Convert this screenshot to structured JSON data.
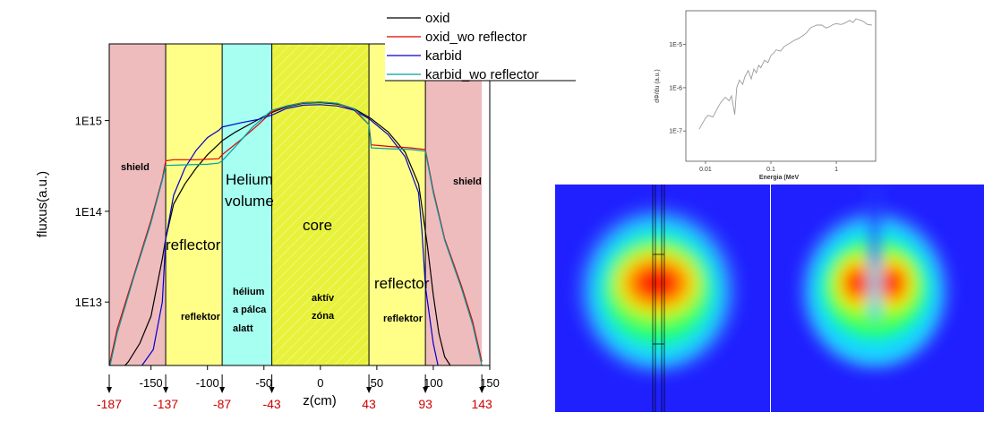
{
  "chart_data": [
    {
      "type": "line",
      "ylabel": "fluxus(a.u.)",
      "xlabel": "z(cm)",
      "xlim": [
        -187,
        150
      ],
      "ylim": [
        2000000000000.0,
        7000000000000000.0
      ],
      "yscale": "log",
      "x_ticks": [
        "-150",
        "-100",
        "-50",
        "0",
        "50",
        "100",
        "150"
      ],
      "y_ticks": [
        "1E13",
        "1E14",
        "1E15"
      ],
      "boundary_labels": [
        "-187",
        "-137",
        "-87",
        "-43",
        "43",
        "93",
        "143"
      ],
      "regions": [
        {
          "from": -187,
          "to": -137,
          "color": "#efbcbe",
          "hatched": false
        },
        {
          "from": -137,
          "to": -87,
          "color": "#ffff88",
          "hatched": false
        },
        {
          "from": -87,
          "to": -43,
          "color": "#a6fff0",
          "hatched": false
        },
        {
          "from": -43,
          "to": 43,
          "color": "#e8f23a",
          "hatched": true
        },
        {
          "from": 43,
          "to": 93,
          "color": "#ffff88",
          "hatched": false
        },
        {
          "from": 93,
          "to": 143,
          "color": "#efbcbe",
          "hatched": false
        }
      ],
      "region_labels": {
        "shield_left": "shield",
        "reflector_left_en": "reflector",
        "reflector_left_hu": "reflektor",
        "helium_volume": [
          "Helium",
          "volume"
        ],
        "helium_hu": [
          "hélium",
          "a pálca",
          "alatt"
        ],
        "core": "core",
        "core_hu": [
          "aktív",
          "zóna"
        ],
        "reflector_right_en": "reflector",
        "reflector_right_hu": "reflektor",
        "shield_right": "shield"
      },
      "series": [
        {
          "name": "oxid",
          "color": "#000000",
          "x": [
            -180,
            -170,
            -160,
            -150,
            -140,
            -137,
            -130,
            -120,
            -110,
            -100,
            -90,
            -87,
            -75,
            -60,
            -45,
            -30,
            -15,
            0,
            15,
            30,
            45,
            60,
            75,
            87,
            90,
            95,
            100,
            105,
            110,
            115
          ],
          "y": [
            1600000000000.0,
            2200000000000.0,
            3500000000000.0,
            7000000000000.0,
            30000000000000.0,
            50000000000000.0,
            120000000000000.0,
            200000000000000.0,
            300000000000000.0,
            420000000000000.0,
            550000000000000.0,
            600000000000000.0,
            750000000000000.0,
            950000000000000.0,
            1200000000000000.0,
            1420000000000000.0,
            1550000000000000.0,
            1580000000000000.0,
            1520000000000000.0,
            1350000000000000.0,
            1050000000000000.0,
            750000000000000.0,
            450000000000000.0,
            200000000000000.0,
            110000000000000.0,
            40000000000000.0,
            12000000000000.0,
            4500000000000.0,
            2500000000000.0,
            2000000000000.0
          ]
        },
        {
          "name": "oxid_wo reflector",
          "color": "#e00000",
          "x": [
            -187,
            -180,
            -165,
            -150,
            -140,
            -137,
            -130,
            -110,
            -90,
            -87,
            -70,
            -55,
            -43,
            -30,
            -15,
            0,
            15,
            30,
            43,
            45,
            60,
            80,
            93,
            100,
            110,
            125,
            135,
            143
          ],
          "y": [
            2000000000000.0,
            5000000000000.0,
            20000000000000.0,
            80000000000000.0,
            230000000000000.0,
            360000000000000.0,
            370000000000000.0,
            370000000000000.0,
            380000000000000.0,
            420000000000000.0,
            620000000000000.0,
            900000000000000.0,
            1250000000000000.0,
            1450000000000000.0,
            1580000000000000.0,
            1600000000000000.0,
            1550000000000000.0,
            1300000000000000.0,
            900000000000000.0,
            540000000000000.0,
            520000000000000.0,
            500000000000000.0,
            480000000000000.0,
            170000000000000.0,
            50000000000000.0,
            15000000000000.0,
            6000000000000.0,
            2200000000000.0
          ]
        },
        {
          "name": "karbid",
          "color": "#0000c8",
          "x": [
            -168,
            -158,
            -148,
            -140,
            -137,
            -130,
            -120,
            -110,
            -100,
            -90,
            -87,
            -70,
            -55,
            -43,
            -30,
            -15,
            0,
            15,
            30,
            43,
            60,
            75,
            87,
            90,
            93,
            100,
            105
          ],
          "y": [
            1600000000000.0,
            2000000000000.0,
            3000000000000.0,
            10000000000000.0,
            50000000000000.0,
            150000000000000.0,
            300000000000000.0,
            470000000000000.0,
            650000000000000.0,
            780000000000000.0,
            850000000000000.0,
            950000000000000.0,
            1030000000000000.0,
            1150000000000000.0,
            1360000000000000.0,
            1480000000000000.0,
            1500000000000000.0,
            1450000000000000.0,
            1300000000000000.0,
            1050000000000000.0,
            700000000000000.0,
            400000000000000.0,
            160000000000000.0,
            60000000000000.0,
            15000000000000.0,
            3500000000000.0,
            1800000000000.0
          ]
        },
        {
          "name": "karbid_wo reflector",
          "color": "#00a0a0",
          "x": [
            -187,
            -180,
            -165,
            -150,
            -140,
            -137,
            -120,
            -100,
            -90,
            -87,
            -75,
            -60,
            -43,
            -30,
            -15,
            0,
            15,
            30,
            43,
            45,
            60,
            80,
            93,
            100,
            110,
            125,
            135,
            143
          ],
          "y": [
            1800000000000.0,
            4500000000000.0,
            19000000000000.0,
            75000000000000.0,
            220000000000000.0,
            320000000000000.0,
            325000000000000.0,
            330000000000000.0,
            340000000000000.0,
            360000000000000.0,
            520000000000000.0,
            850000000000000.0,
            1300000000000000.0,
            1450000000000000.0,
            1570000000000000.0,
            1600000000000000.0,
            1550000000000000.0,
            1350000000000000.0,
            900000000000000.0,
            500000000000000.0,
            490000000000000.0,
            480000000000000.0,
            460000000000000.0,
            160000000000000.0,
            48000000000000.0,
            14000000000000.0,
            5500000000000.0,
            2000000000000.0
          ]
        }
      ]
    },
    {
      "type": "line",
      "xlabel": "Energia (MeV",
      "ylabel": "dΦ/du (a.u.)",
      "xscale": "log",
      "yscale": "log",
      "xlim": [
        0.005,
        4
      ],
      "ylim": [
        2e-08,
        6e-05
      ],
      "x_ticks": [
        "0.01",
        "0.1",
        "1"
      ],
      "y_ticks": [
        "1E-5",
        "1E-6",
        "1E-7"
      ],
      "series": [
        {
          "color": "#9a9a9a",
          "x": [
            0.008,
            0.009,
            0.01,
            0.011,
            0.013,
            0.015,
            0.017,
            0.02,
            0.023,
            0.025,
            0.028,
            0.03,
            0.033,
            0.037,
            0.04,
            0.045,
            0.05,
            0.055,
            0.06,
            0.065,
            0.07,
            0.08,
            0.09,
            0.1,
            0.11,
            0.12,
            0.14,
            0.16,
            0.18,
            0.2,
            0.23,
            0.26,
            0.3,
            0.35,
            0.4,
            0.45,
            0.5,
            0.6,
            0.7,
            0.8,
            0.9,
            1.0,
            1.2,
            1.4,
            1.6,
            1.8,
            2.0,
            2.5,
            3.0,
            3.5
          ],
          "y": [
            1.1e-07,
            1.5e-07,
            2e-07,
            2.3e-07,
            2.1e-07,
            3.2e-07,
            4.5e-07,
            6e-07,
            5e-07,
            6.5e-07,
            2.4e-07,
            1e-06,
            1.5e-06,
            1.2e-06,
            1.8e-06,
            2.5e-06,
            1.6e-06,
            2.7e-06,
            2.2e-06,
            3.3e-06,
            2.9e-06,
            4.3e-06,
            3.8e-06,
            5.5e-06,
            6.3e-06,
            7.5e-06,
            7e-06,
            9e-06,
            1e-05,
            1.1e-05,
            1.25e-05,
            1.35e-05,
            1.55e-05,
            1.85e-05,
            2.4e-05,
            2.6e-05,
            2.8e-05,
            2.8e-05,
            2.4e-05,
            2.6e-05,
            2.9e-05,
            3e-05,
            2.9e-05,
            3.2e-05,
            3.6e-05,
            3.2e-05,
            3.9e-05,
            3.5e-05,
            2.9e-05,
            2.8e-05
          ]
        }
      ]
    }
  ],
  "maps": {
    "left_map": "flux-distribution-map-oxid",
    "right_map": "flux-distribution-map-karbid"
  }
}
